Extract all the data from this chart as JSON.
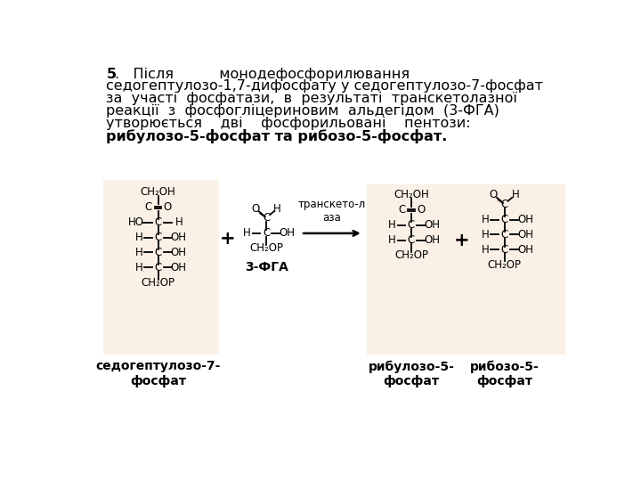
{
  "bg_color": "#FFFFFF",
  "box1_color": "#FAF0E6",
  "box2_color": "#FAF0E6",
  "label1": "седогептулозо-7-\nфосфат",
  "label2": "3-ФГА",
  "label3": "рибулозо-5-\nфосфат",
  "label4": "рибозо-5-\nфосфат",
  "enzyme_label": "транскето-л\nаза",
  "text_lines": [
    [
      "5",
      "bold",
      38,
      14
    ],
    [
      ".   Після          монодефосфорилювання",
      "normal",
      52,
      14
    ],
    [
      "седогептулозо-1,7-дифосфату у седогептулозо-7-фосфат",
      "normal",
      38,
      32
    ],
    [
      "за  участі  фосфатази,  в  результаті  транскетолазної",
      "normal",
      38,
      50
    ],
    [
      "реакції  з  фосфогліцериновим  альдегідом  (3-ФГА)",
      "normal",
      38,
      68
    ],
    [
      "утворюється    дві    фосфорильовані    пентози:",
      "normal",
      38,
      86
    ],
    [
      "рибулозо-5-фосфат та рибозо-5-фосфат.",
      "bold",
      38,
      104
    ]
  ],
  "fs_text": 11.5,
  "fs_struct": 8.5,
  "lw_struct": 1.3
}
